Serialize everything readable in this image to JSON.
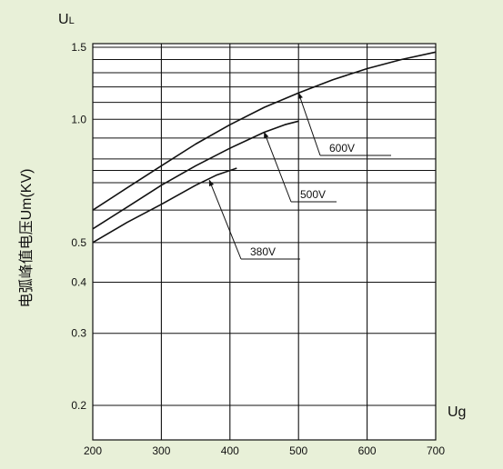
{
  "chart_data": {
    "type": "line",
    "ylabel": "电弧峰值电压Um(KV)",
    "ytitle_main": "U",
    "ytitle_sub": "L",
    "xtitle": "Ug",
    "x_scale": "linear",
    "y_scale": "log",
    "xlim": [
      200,
      700
    ],
    "ylim": [
      0.18,
      1.5
    ],
    "grid": true,
    "x_ticks": [
      200,
      300,
      400,
      500,
      600,
      700
    ],
    "x_tick_labels": [
      "200",
      "300",
      "400",
      "500",
      "600",
      "700"
    ],
    "y_ticks": [
      0.2,
      0.3,
      0.4,
      0.5,
      1.0,
      1.5
    ],
    "y_tick_labels": [
      "0.2",
      "0.3",
      "0.4",
      "0.5",
      "1.0",
      "1.5"
    ],
    "y_minor_gridlines": [
      0.6,
      0.7,
      0.75,
      0.8,
      0.9,
      1.1,
      1.2,
      1.3,
      1.4
    ],
    "series": [
      {
        "name": "600V",
        "x": [
          200,
          250,
          300,
          350,
          400,
          450,
          500,
          550,
          600,
          650,
          700
        ],
        "values": [
          0.6,
          0.68,
          0.77,
          0.87,
          0.97,
          1.07,
          1.16,
          1.25,
          1.33,
          1.4,
          1.46
        ]
      },
      {
        "name": "500V",
        "x": [
          200,
          250,
          300,
          350,
          400,
          450,
          480,
          500
        ],
        "values": [
          0.54,
          0.61,
          0.69,
          0.77,
          0.85,
          0.93,
          0.97,
          0.99
        ]
      },
      {
        "name": "380V",
        "x": [
          200,
          250,
          300,
          350,
          380,
          410
        ],
        "values": [
          0.5,
          0.56,
          0.62,
          0.69,
          0.73,
          0.76
        ]
      }
    ]
  }
}
